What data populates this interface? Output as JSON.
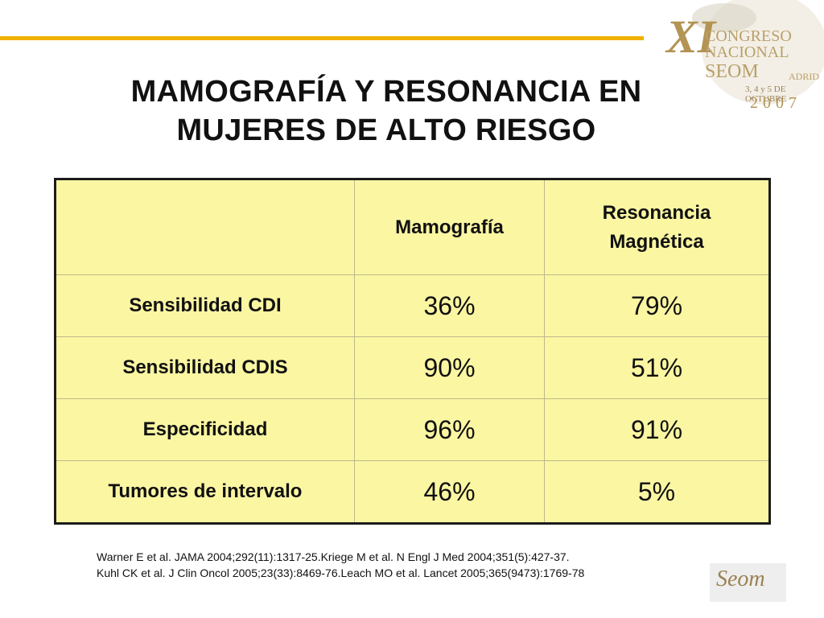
{
  "slide": {
    "title_line1": "MAMOGRAFÍA Y RESONANCIA EN",
    "title_line2": "MUJERES DE ALTO RIESGO"
  },
  "logo": {
    "roman": "XI",
    "line1": "CONGRESO",
    "line2": "NACIONAL",
    "brand": "SEOM",
    "city": "ADRID",
    "dates": "3, 4 y 5 DE OCTUBRE",
    "year": "2007"
  },
  "table": {
    "headers": [
      "",
      "Mamografía",
      "Resonancia Magnética"
    ],
    "rows": [
      {
        "label": "Sensibilidad CDI",
        "mamografia": "36%",
        "resonancia": "79%"
      },
      {
        "label": "Sensibilidad CDIS",
        "mamografia": "90%",
        "resonancia": "51%"
      },
      {
        "label": "Especificidad",
        "mamografia": "96%",
        "resonancia": "91%"
      },
      {
        "label": "Tumores de intervalo",
        "mamografia": "46%",
        "resonancia": "5%"
      }
    ]
  },
  "references": {
    "line1": "Warner E et al. JAMA 2004;292(11):1317-25.Kriege M et al. N Engl J Med 2004;351(5):427-37.",
    "line2": "Kuhl CK et al. J Clin Oncol 2005;23(33):8469-76.Leach MO et al. Lancet 2005;365(9473):1769-78"
  },
  "corner_logo": {
    "text": "Seom"
  },
  "colors": {
    "accent": "#f0b100",
    "table_fill": "#fbf6a2",
    "logo_gold": "#b39454"
  }
}
